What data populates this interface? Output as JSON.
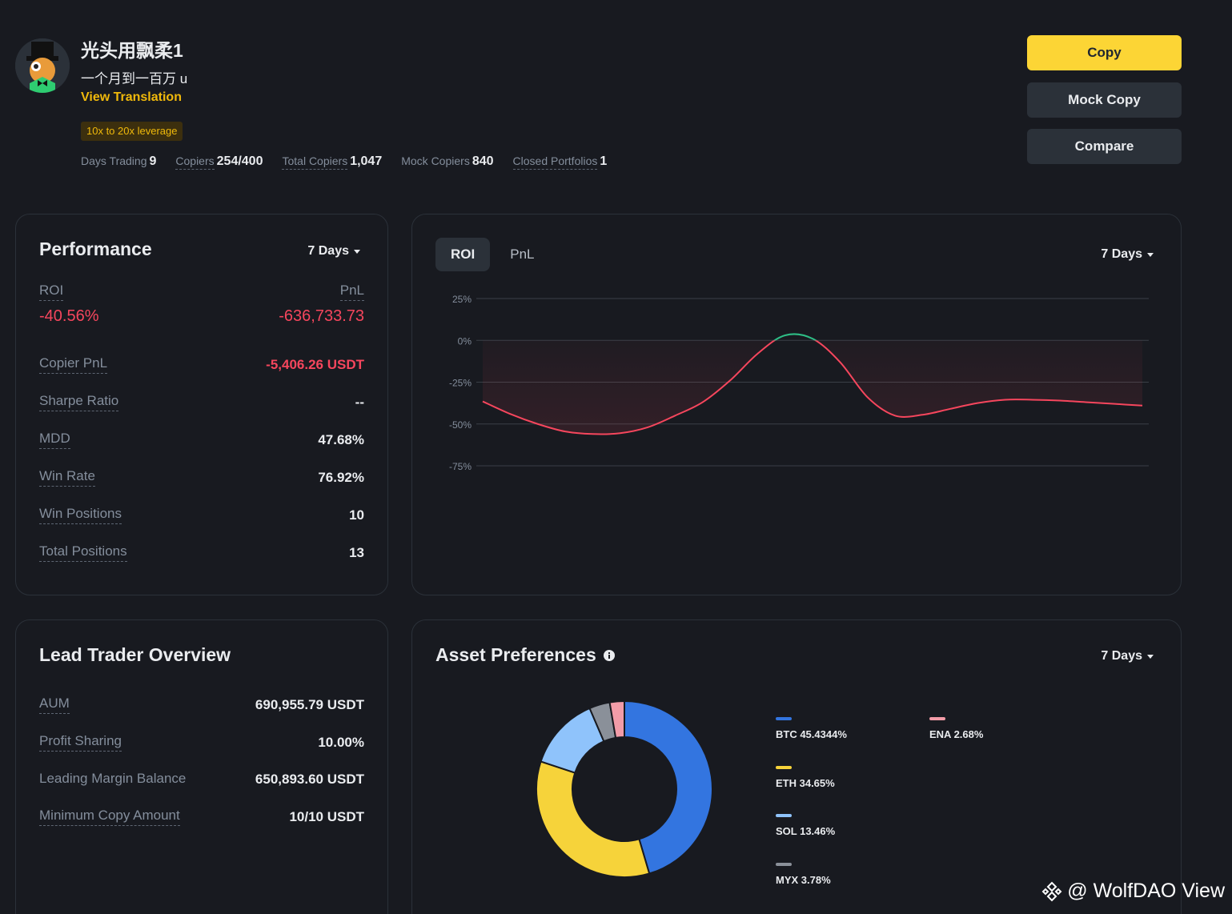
{
  "profile": {
    "nickname": "光头用飘柔1",
    "bio": "一个月到一百万 u",
    "view_translation": "View Translation",
    "badge": "10x to 20x leverage"
  },
  "stats": [
    {
      "label": "Days Trading",
      "value": "9"
    },
    {
      "label": "Copiers",
      "value": "254/400"
    },
    {
      "label": "Total Copiers",
      "value": "1,047"
    },
    {
      "label": "Mock Copiers",
      "value": "840"
    },
    {
      "label": "Closed Portfolios",
      "value": "1"
    }
  ],
  "actions": {
    "copy": "Copy",
    "mock_copy": "Mock Copy",
    "compare": "Compare"
  },
  "performance": {
    "title": "Performance",
    "period": "7 Days",
    "roi_label": "ROI",
    "pnl_label": "PnL",
    "roi_value": "-40.56%",
    "pnl_value": "-636,733.73",
    "rows": [
      {
        "label": "Copier PnL",
        "value": "-5,406.26 USDT"
      },
      {
        "label": "Sharpe Ratio",
        "value": "--"
      },
      {
        "label": "MDD",
        "value": "47.68%"
      },
      {
        "label": "Win Rate",
        "value": "76.92%"
      },
      {
        "label": "Win Positions",
        "value": "10"
      },
      {
        "label": "Total Positions",
        "value": "13"
      }
    ]
  },
  "roi_chart": {
    "tabs": [
      "ROI",
      "PnL"
    ],
    "active_tab": "ROI",
    "period": "7 Days"
  },
  "chart_data": {
    "type": "line",
    "yticks": [
      "25%",
      "0%",
      "-25%",
      "-50%",
      "-75%"
    ],
    "ylim": [
      -75,
      25
    ],
    "x": [
      0,
      1,
      2,
      3,
      4,
      5,
      6,
      7,
      8,
      9,
      10,
      11,
      12,
      13,
      14,
      15,
      16,
      17,
      18,
      19,
      20,
      21,
      22,
      23,
      24
    ],
    "series": [
      {
        "values": [
          -36.5,
          -44,
          -50,
          -54.5,
          -56,
          -55.5,
          -52,
          -45,
          -37,
          -24,
          -8,
          3,
          1,
          -13,
          -34,
          -45,
          -44.5,
          -41,
          -37.5,
          -35.5,
          -35.5,
          -36,
          -37,
          -38,
          -39
        ],
        "color": "#f6465d",
        "positive_color": "#2ebd85"
      }
    ],
    "grid": true
  },
  "lead_overview": {
    "title": "Lead Trader Overview",
    "rows": [
      {
        "label": "AUM",
        "value": "690,955.79 USDT"
      },
      {
        "label": "Profit Sharing",
        "value": "10.00%"
      },
      {
        "label": "Leading Margin Balance",
        "value": "650,893.60 USDT"
      },
      {
        "label": "Minimum Copy Amount",
        "value": "10/10 USDT"
      }
    ]
  },
  "asset_preferences": {
    "title": "Asset Preferences",
    "period": "7 Days",
    "info_icon": "info-icon",
    "items": [
      {
        "label": "BTC 45.4344%",
        "value": 45.4344,
        "color": "#3375e0"
      },
      {
        "label": "ETH 34.65%",
        "value": 34.65,
        "color": "#f6d33a"
      },
      {
        "label": "SOL 13.46%",
        "value": 13.46,
        "color": "#8fc3fb"
      },
      {
        "label": "MYX 3.78%",
        "value": 3.78,
        "color": "#8a9099"
      },
      {
        "label": "ENA 2.68%",
        "value": 2.68,
        "color": "#f29ca8"
      }
    ]
  },
  "watermark": "@ WolfDAO View"
}
